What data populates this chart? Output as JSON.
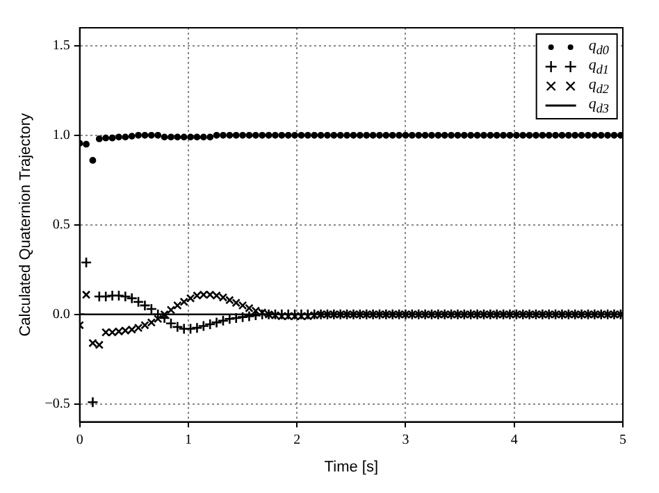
{
  "chart_data": {
    "type": "scatter",
    "xlabel": "Time [s]",
    "ylabel": "Calculated Quaternion Trajectory",
    "x": [
      0,
      0.06,
      0.12,
      0.18,
      0.24,
      0.3,
      0.36,
      0.42,
      0.48,
      0.54,
      0.6,
      0.66,
      0.72,
      0.78,
      0.84,
      0.9,
      0.96,
      1.02,
      1.08,
      1.14,
      1.2,
      1.26,
      1.32,
      1.38,
      1.44,
      1.5,
      1.56,
      1.62,
      1.68,
      1.74,
      1.8,
      1.86,
      1.92,
      1.98,
      2.04,
      2.1,
      2.16,
      2.22,
      2.28,
      2.34,
      2.4,
      2.46,
      2.52,
      2.58,
      2.64,
      2.7,
      2.76,
      2.82,
      2.88,
      2.94,
      3,
      3.06,
      3.12,
      3.18,
      3.24,
      3.3,
      3.36,
      3.42,
      3.48,
      3.54,
      3.6,
      3.66,
      3.72,
      3.78,
      3.84,
      3.9,
      3.96,
      4.02,
      4.08,
      4.14,
      4.2,
      4.26,
      4.32,
      4.38,
      4.44,
      4.5,
      4.56,
      4.62,
      4.68,
      4.74,
      4.8,
      4.86,
      4.92,
      4.98
    ],
    "series": [
      {
        "name": "q$_{d0}$",
        "color": "#000000",
        "marker": "circle",
        "values": [
          0.955,
          0.95,
          0.86,
          0.98,
          0.985,
          0.985,
          0.99,
          0.99,
          0.995,
          1,
          1,
          1,
          1,
          0.99,
          0.99,
          0.99,
          0.99,
          0.99,
          0.99,
          0.99,
          0.99,
          1,
          1,
          1,
          1,
          1,
          1,
          1,
          1,
          1,
          1,
          1,
          1,
          1,
          1,
          1,
          1,
          1,
          1,
          1,
          1,
          1,
          1,
          1,
          1,
          1,
          1,
          1,
          1,
          1,
          1,
          1,
          1,
          1,
          1,
          1,
          1,
          1,
          1,
          1,
          1,
          1,
          1,
          1,
          1,
          1,
          1,
          1,
          1,
          1,
          1,
          1,
          1,
          1,
          1,
          1,
          1,
          1,
          1,
          1,
          1,
          1,
          1,
          1
        ]
      },
      {
        "name": "q$_{d1}$",
        "color": "#000000",
        "marker": "cross",
        "values": [
          0,
          0.29,
          -0.49,
          0.1,
          0.1,
          0.105,
          0.105,
          0.1,
          0.09,
          0.07,
          0.05,
          0.03,
          0,
          -0.02,
          -0.05,
          -0.07,
          -0.08,
          -0.08,
          -0.075,
          -0.065,
          -0.055,
          -0.045,
          -0.035,
          -0.025,
          -0.02,
          -0.015,
          -0.01,
          -0.005,
          0,
          0,
          0,
          0,
          0,
          0,
          0,
          0,
          0,
          0,
          0,
          0,
          0,
          0,
          0,
          0,
          0,
          0,
          0,
          0,
          0,
          0,
          0,
          0,
          0,
          0,
          0,
          0,
          0,
          0,
          0,
          0,
          0,
          0,
          0,
          0,
          0,
          0,
          0,
          0,
          0,
          0,
          0,
          0,
          0,
          0,
          0,
          0,
          0,
          0,
          0,
          0,
          0,
          0,
          0,
          0
        ]
      },
      {
        "name": "q$_{d2}$",
        "color": "#000000",
        "marker": "x",
        "values": [
          -0.06,
          0.11,
          -0.16,
          -0.17,
          -0.1,
          -0.1,
          -0.095,
          -0.09,
          -0.085,
          -0.075,
          -0.06,
          -0.045,
          -0.025,
          0,
          0.025,
          0.05,
          0.07,
          0.09,
          0.105,
          0.11,
          0.11,
          0.105,
          0.095,
          0.08,
          0.065,
          0.05,
          0.035,
          0.02,
          0.01,
          0,
          -0.005,
          -0.01,
          -0.01,
          -0.01,
          -0.01,
          -0.01,
          -0.005,
          0,
          0,
          0,
          0,
          0,
          0,
          0,
          0,
          0,
          0,
          0,
          0,
          0,
          0,
          0,
          0,
          0,
          0,
          0,
          0,
          0,
          0,
          0,
          0,
          0,
          0,
          0,
          0,
          0,
          0,
          0,
          0,
          0,
          0,
          0,
          0,
          0,
          0,
          0,
          0,
          0,
          0,
          0,
          0,
          0,
          0,
          0
        ]
      },
      {
        "name": "q$_{d3}$",
        "color": "#000000",
        "type": "line",
        "marker": "none",
        "line_style": "solid",
        "x": [
          0,
          5
        ],
        "values": [
          0,
          0
        ]
      }
    ],
    "xlim": [
      0,
      5
    ],
    "xticks": [
      0,
      1,
      2,
      3,
      4,
      5
    ],
    "ylim": [
      -0.6,
      1.6
    ],
    "yticks": [
      {
        "value": -0.5,
        "label": "−0.5"
      },
      {
        "value": 0,
        "label": "0.0"
      },
      {
        "value": 0.5,
        "label": "0.5"
      },
      {
        "value": 1,
        "label": "1.0"
      },
      {
        "value": 1.5,
        "label": "1.5"
      }
    ],
    "grid": true,
    "legend": "top right"
  }
}
